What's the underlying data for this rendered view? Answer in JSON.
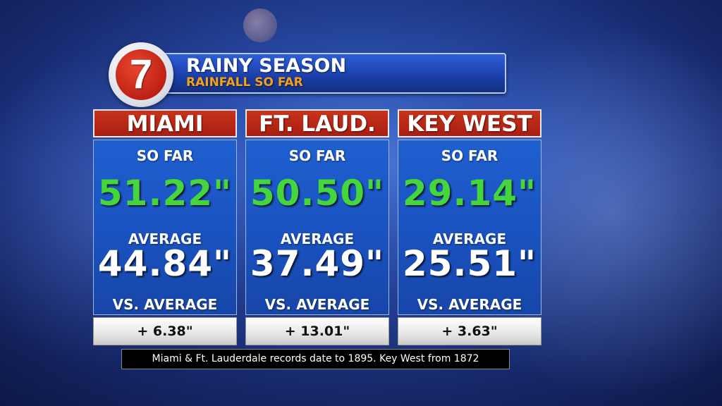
{
  "header": {
    "logo_text": "7",
    "title": "RAINY SEASON",
    "subtitle": "RAINFALL SO FAR"
  },
  "labels": {
    "so_far": "SO FAR",
    "average": "AVERAGE",
    "vs_average": "VS. AVERAGE"
  },
  "cities": [
    {
      "name": "MIAMI",
      "so_far": "51.22\"",
      "average": "44.84\"",
      "vs_average": "+ 6.38\""
    },
    {
      "name": "FT. LAUD.",
      "so_far": "50.50\"",
      "average": "37.49\"",
      "vs_average": "+ 13.01\""
    },
    {
      "name": "KEY WEST",
      "so_far": "29.14\"",
      "average": "25.51\"",
      "vs_average": "+ 3.63\""
    }
  ],
  "footnote": "Miami & Ft. Lauderdale records date to 1895. Key West from 1872",
  "colors": {
    "city_header": "#b5271a",
    "so_far_value": "#45d63c",
    "panel_blue": "#1a52c0",
    "subtitle_orange": "#f2a11c"
  }
}
